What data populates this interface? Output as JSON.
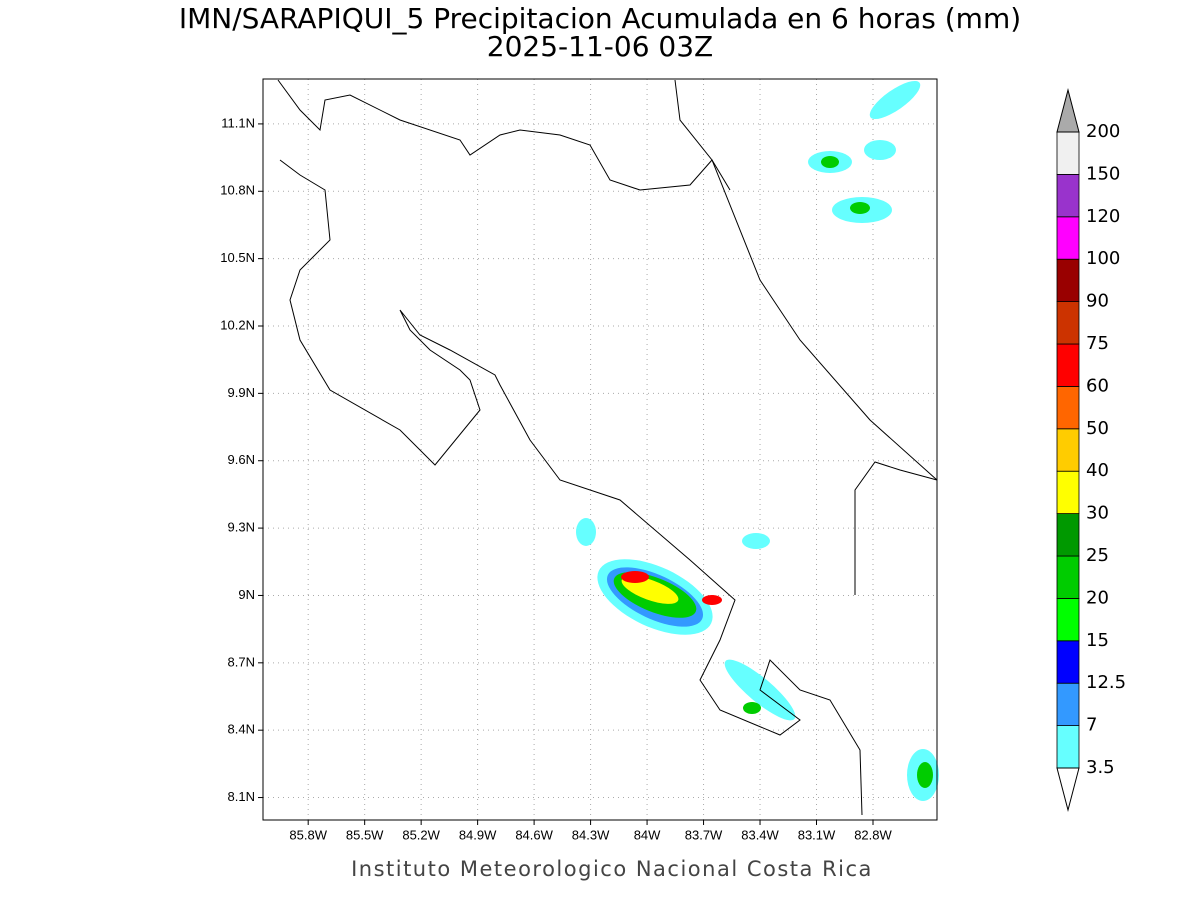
{
  "header": {
    "title": "IMN/SARAPIQUI_5 Precipitacion Acumulada en 6 horas (mm)",
    "subtitle": "2025-11-06 03Z"
  },
  "map": {
    "lonlim": [
      -86.04,
      -82.46
    ],
    "latlim": [
      8.0,
      11.3
    ],
    "lon_ticks": [
      {
        "value": -85.8,
        "label": "85.8W"
      },
      {
        "value": -85.5,
        "label": "85.5W"
      },
      {
        "value": -85.2,
        "label": "85.2W"
      },
      {
        "value": -84.9,
        "label": "84.9W"
      },
      {
        "value": -84.6,
        "label": "84.6W"
      },
      {
        "value": -84.3,
        "label": "84.3W"
      },
      {
        "value": -84,
        "label": "84W"
      },
      {
        "value": -83.7,
        "label": "83.7W"
      },
      {
        "value": -83.4,
        "label": "83.4W"
      },
      {
        "value": -83.1,
        "label": "83.1W"
      },
      {
        "value": -82.8,
        "label": "82.8W"
      }
    ],
    "lat_ticks": [
      {
        "value": 8.1,
        "label": "8.1N"
      },
      {
        "value": 8.4,
        "label": "8.4N"
      },
      {
        "value": 8.7,
        "label": "8.7N"
      },
      {
        "value": 9,
        "label": "9N"
      },
      {
        "value": 9.3,
        "label": "9.3N"
      },
      {
        "value": 9.6,
        "label": "9.6N"
      },
      {
        "value": 9.9,
        "label": "9.9N"
      },
      {
        "value": 10.2,
        "label": "10.2N"
      },
      {
        "value": 10.5,
        "label": "10.5N"
      },
      {
        "value": 10.8,
        "label": "10.8N"
      },
      {
        "value": 11.1,
        "label": "11.1N"
      }
    ],
    "grid": true
  },
  "colorbar": {
    "levels": [
      3.5,
      7,
      12.5,
      15,
      20,
      25,
      30,
      40,
      50,
      60,
      75,
      90,
      100,
      120,
      150,
      200
    ],
    "colors": [
      "#66ffff",
      "#3399ff",
      "#0000ff",
      "#00ff00",
      "#00cc00",
      "#009900",
      "#ffff00",
      "#ffcc00",
      "#ff6600",
      "#ff0000",
      "#cc3300",
      "#990000",
      "#ff00ff",
      "#9933cc",
      "#f0f0f0"
    ],
    "under_color": "#ffffff",
    "over_color": "#aaaaaa"
  },
  "footer": "Instituto Meteorologico Nacional Costa Rica"
}
